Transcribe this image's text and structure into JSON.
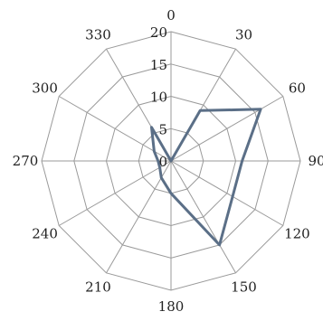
{
  "chart_data": {
    "type": "radar",
    "angle_labels": [
      "0",
      "30",
      "60",
      "90",
      "120",
      "150",
      "180",
      "210",
      "240",
      "270",
      "300",
      "330"
    ],
    "angles_deg": [
      0,
      30,
      60,
      90,
      120,
      150,
      180,
      210,
      240,
      270,
      300,
      330
    ],
    "radial_ticks": [
      "0",
      "5",
      "10",
      "15",
      "20"
    ],
    "rmax": 20,
    "series": [
      {
        "values": [
          0,
          9,
          16,
          11,
          11,
          15,
          5,
          3,
          2,
          2,
          3,
          6
        ],
        "color": "#5b6f87"
      }
    ],
    "grid": true,
    "legend": "none"
  }
}
